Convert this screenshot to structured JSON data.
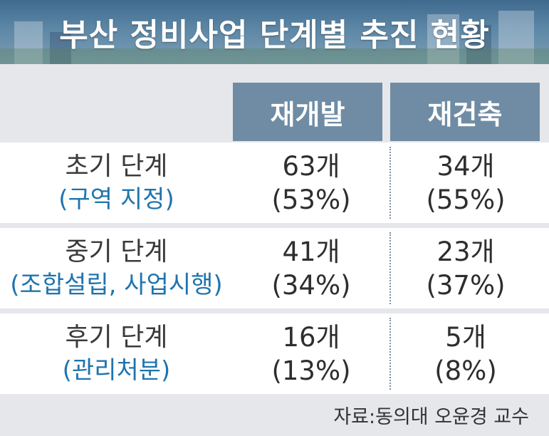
{
  "title": "부산 정비사업 단계별 추진 현황",
  "source": "자료:동의대 오윤경 교수",
  "chart_data": {
    "type": "table",
    "columns": [
      "재개발",
      "재건축"
    ],
    "rows": [
      {
        "stage": "초기 단계",
        "detail": "(구역 지정)",
        "cells": [
          {
            "count": "63개",
            "pct": "(53%)"
          },
          {
            "count": "34개",
            "pct": "(55%)"
          }
        ]
      },
      {
        "stage": "중기 단계",
        "detail": "(조합설립, 사업시행)",
        "cells": [
          {
            "count": "41개",
            "pct": "(34%)"
          },
          {
            "count": "23개",
            "pct": "(37%)"
          }
        ]
      },
      {
        "stage": "후기 단계",
        "detail": "(관리처분)",
        "cells": [
          {
            "count": "16개",
            "pct": "(13%)"
          },
          {
            "count": "5개",
            "pct": "(8%)"
          }
        ]
      }
    ],
    "colors": {
      "header_band": "#4f7898",
      "column_header": "#6f8ca4",
      "detail_text": "#1f74ad",
      "background": "#e6e7ea"
    }
  }
}
